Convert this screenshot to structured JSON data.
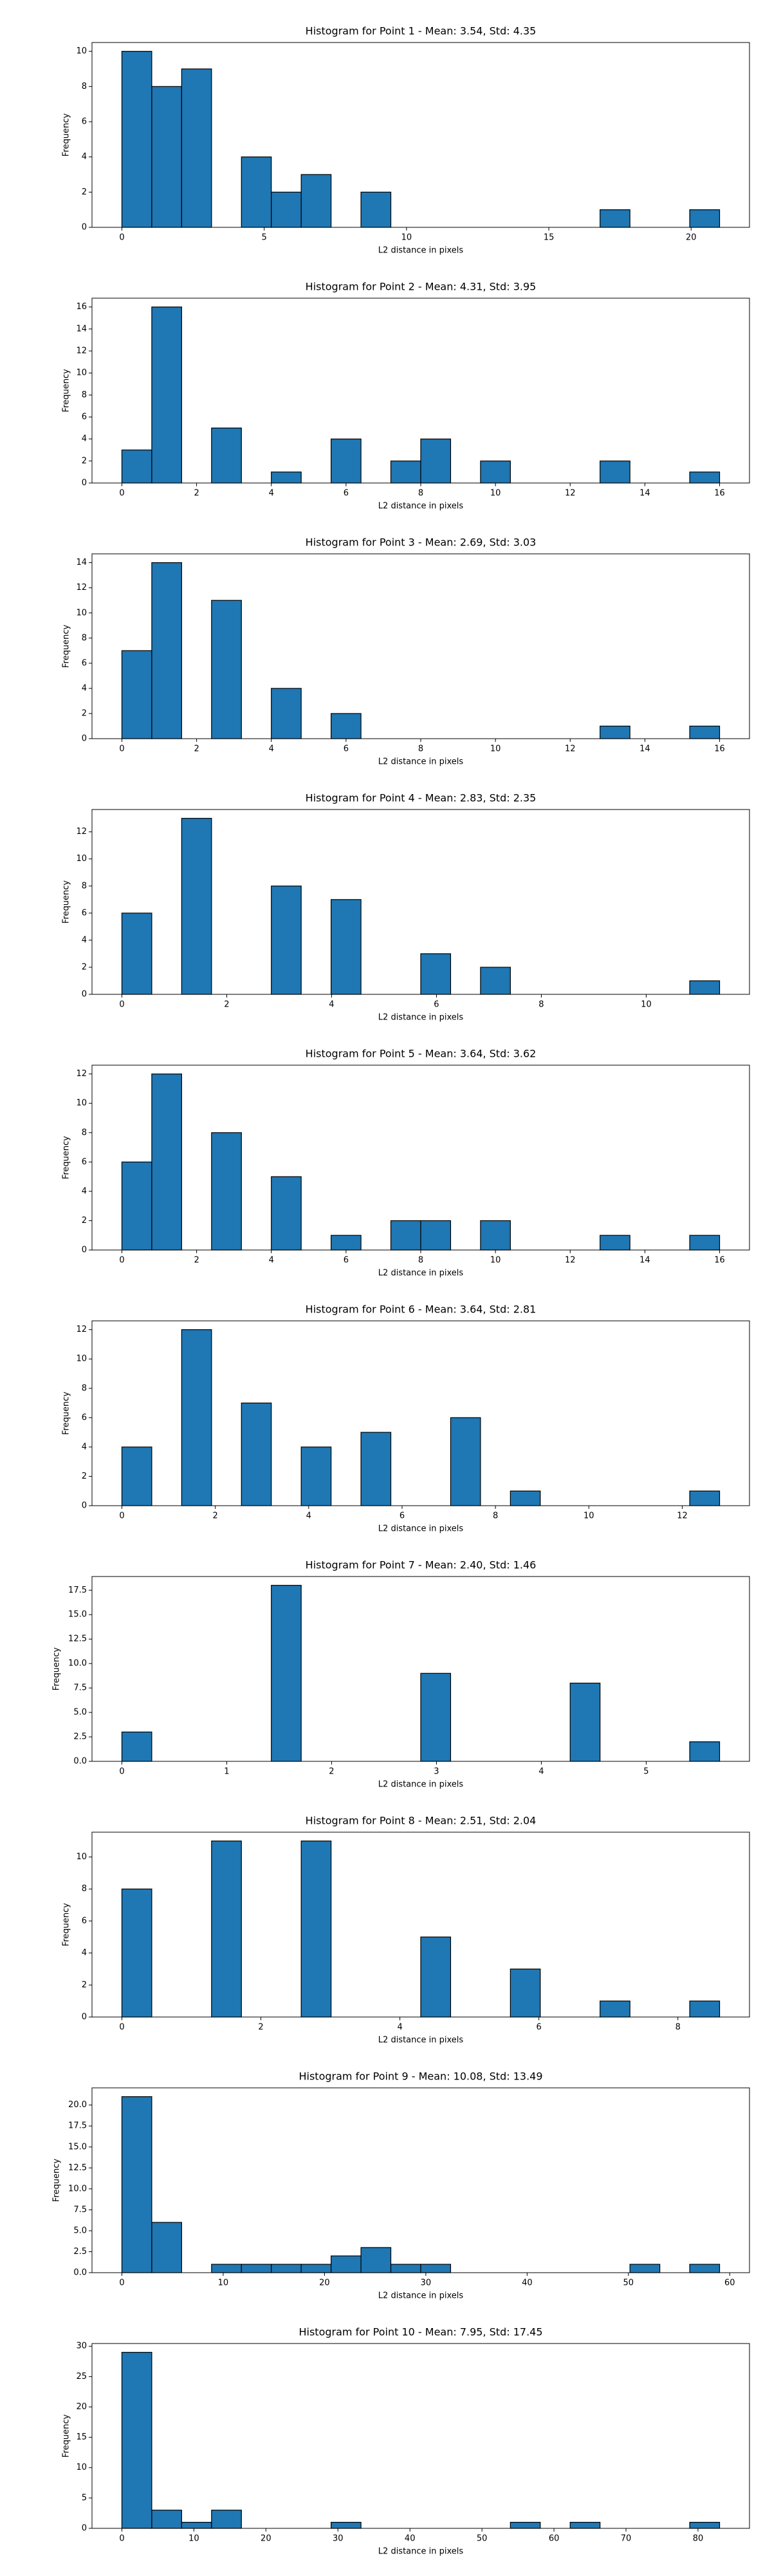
{
  "chart_data": [
    {
      "type": "histogram",
      "title": "Histogram for Point 1 - Mean: 3.54, Std: 4.35",
      "x_label": "L2 distance in pixels",
      "y_label": "Frequency",
      "color": "#1f77b4",
      "edgecolor": "#000000",
      "bins": [
        0,
        1.05,
        2.1,
        3.15,
        4.2,
        5.25,
        6.3,
        7.35,
        8.4,
        9.45,
        10.5,
        11.55,
        12.6,
        13.65,
        14.7,
        15.75,
        16.8,
        17.85,
        18.9,
        19.95,
        21
      ],
      "values": [
        10,
        8,
        9,
        0,
        4,
        2,
        3,
        0,
        2,
        0,
        0,
        0,
        0,
        0,
        0,
        0,
        1,
        0,
        0,
        1
      ],
      "xlim": [
        -1.05,
        22.05
      ],
      "xticks": [
        0,
        5,
        10,
        15,
        20
      ],
      "ylim": [
        0,
        10.5
      ],
      "yticks": [
        0,
        2,
        4,
        6,
        8,
        10
      ]
    },
    {
      "type": "histogram",
      "title": "Histogram for Point 2 - Mean: 4.31, Std: 3.95",
      "x_label": "L2 distance in pixels",
      "y_label": "Frequency",
      "color": "#1f77b4",
      "edgecolor": "#000000",
      "bins": [
        0,
        0.8,
        1.6,
        2.4,
        3.2,
        4,
        4.8,
        5.6,
        6.4,
        7.2,
        8,
        8.8,
        9.6,
        10.4,
        11.2,
        12,
        12.8,
        13.6,
        14.4,
        15.2,
        16
      ],
      "values": [
        3,
        16,
        0,
        5,
        0,
        1,
        0,
        4,
        0,
        2,
        4,
        0,
        2,
        0,
        0,
        0,
        2,
        0,
        0,
        1
      ],
      "xlim": [
        -0.8,
        16.8
      ],
      "xticks": [
        0,
        2,
        4,
        6,
        8,
        10,
        12,
        14,
        16
      ],
      "ylim": [
        0,
        16.8
      ],
      "yticks": [
        0,
        2,
        4,
        6,
        8,
        10,
        12,
        14,
        16
      ]
    },
    {
      "type": "histogram",
      "title": "Histogram for Point 3 - Mean: 2.69, Std: 3.03",
      "x_label": "L2 distance in pixels",
      "y_label": "Frequency",
      "color": "#1f77b4",
      "edgecolor": "#000000",
      "bins": [
        0,
        0.8,
        1.6,
        2.4,
        3.2,
        4,
        4.8,
        5.6,
        6.4,
        7.2,
        8,
        8.8,
        9.6,
        10.4,
        11.2,
        12,
        12.8,
        13.6,
        14.4,
        15.2,
        16
      ],
      "values": [
        7,
        14,
        0,
        11,
        0,
        4,
        0,
        2,
        0,
        0,
        0,
        0,
        0,
        0,
        0,
        0,
        1,
        0,
        0,
        1
      ],
      "xlim": [
        -0.8,
        16.8
      ],
      "xticks": [
        0,
        2,
        4,
        6,
        8,
        10,
        12,
        14,
        16
      ],
      "ylim": [
        0,
        14.7
      ],
      "yticks": [
        0,
        2,
        4,
        6,
        8,
        10,
        12,
        14
      ]
    },
    {
      "type": "histogram",
      "title": "Histogram for Point 4 - Mean: 2.83, Std: 2.35",
      "x_label": "L2 distance in pixels",
      "y_label": "Frequency",
      "color": "#1f77b4",
      "edgecolor": "#000000",
      "bins": [
        0,
        0.57,
        1.14,
        1.71,
        2.28,
        2.85,
        3.42,
        3.99,
        4.56,
        5.13,
        5.7,
        6.27,
        6.84,
        7.41,
        7.98,
        8.55,
        9.12,
        9.69,
        10.26,
        10.83,
        11.4
      ],
      "values": [
        6,
        0,
        13,
        0,
        0,
        8,
        0,
        7,
        0,
        0,
        3,
        0,
        2,
        0,
        0,
        0,
        0,
        0,
        0,
        1
      ],
      "xlim": [
        -0.57,
        11.97
      ],
      "xticks": [
        0,
        2,
        4,
        6,
        8,
        10
      ],
      "ylim": [
        0,
        13.65
      ],
      "yticks": [
        0,
        2,
        4,
        6,
        8,
        10,
        12
      ]
    },
    {
      "type": "histogram",
      "title": "Histogram for Point 5 - Mean: 3.64, Std: 3.62",
      "x_label": "L2 distance in pixels",
      "y_label": "Frequency",
      "color": "#1f77b4",
      "edgecolor": "#000000",
      "bins": [
        0,
        0.8,
        1.6,
        2.4,
        3.2,
        4,
        4.8,
        5.6,
        6.4,
        7.2,
        8,
        8.8,
        9.6,
        10.4,
        11.2,
        12,
        12.8,
        13.6,
        14.4,
        15.2,
        16
      ],
      "values": [
        6,
        12,
        0,
        8,
        0,
        5,
        0,
        1,
        0,
        2,
        2,
        0,
        2,
        0,
        0,
        0,
        1,
        0,
        0,
        1
      ],
      "xlim": [
        -0.8,
        16.8
      ],
      "xticks": [
        0,
        2,
        4,
        6,
        8,
        10,
        12,
        14,
        16
      ],
      "ylim": [
        0,
        12.6
      ],
      "yticks": [
        0,
        2,
        4,
        6,
        8,
        10,
        12
      ]
    },
    {
      "type": "histogram",
      "title": "Histogram for Point 6 - Mean: 3.64, Std: 2.81",
      "x_label": "L2 distance in pixels",
      "y_label": "Frequency",
      "color": "#1f77b4",
      "edgecolor": "#000000",
      "bins": [
        0,
        0.64,
        1.28,
        1.92,
        2.56,
        3.2,
        3.84,
        4.48,
        5.12,
        5.76,
        6.4,
        7.04,
        7.68,
        8.32,
        8.96,
        9.6,
        10.24,
        10.88,
        11.52,
        12.16,
        12.8
      ],
      "values": [
        4,
        0,
        12,
        0,
        7,
        0,
        4,
        0,
        5,
        0,
        0,
        6,
        0,
        1,
        0,
        0,
        0,
        0,
        0,
        1
      ],
      "xlim": [
        -0.64,
        13.44
      ],
      "xticks": [
        0,
        2,
        4,
        6,
        8,
        10,
        12
      ],
      "ylim": [
        0,
        12.6
      ],
      "yticks": [
        0,
        2,
        4,
        6,
        8,
        10,
        12
      ]
    },
    {
      "type": "histogram",
      "title": "Histogram for Point 7 - Mean: 2.40, Std: 1.46",
      "x_label": "L2 distance in pixels",
      "y_label": "Frequency",
      "color": "#1f77b4",
      "edgecolor": "#000000",
      "bins": [
        0,
        0.285,
        0.57,
        0.855,
        1.14,
        1.425,
        1.71,
        1.995,
        2.28,
        2.565,
        2.85,
        3.135,
        3.42,
        3.705,
        3.99,
        4.275,
        4.56,
        4.845,
        5.13,
        5.415,
        5.7
      ],
      "values": [
        3,
        0,
        0,
        0,
        0,
        18,
        0,
        0,
        0,
        0,
        9,
        0,
        0,
        0,
        0,
        8,
        0,
        0,
        0,
        2
      ],
      "xlim": [
        -0.285,
        5.985
      ],
      "xticks": [
        0,
        1,
        2,
        3,
        4,
        5
      ],
      "ylim": [
        0,
        18.9
      ],
      "yticks": [
        {
          "value": 0,
          "label": "0.0"
        },
        2.5,
        {
          "value": 5,
          "label": "5.0"
        },
        7.5,
        {
          "value": 10,
          "label": "10.0"
        },
        12.5,
        {
          "value": 15,
          "label": "15.0"
        },
        17.5
      ]
    },
    {
      "type": "histogram",
      "title": "Histogram for Point 8 - Mean: 2.51, Std: 2.04",
      "x_label": "L2 distance in pixels",
      "y_label": "Frequency",
      "color": "#1f77b4",
      "edgecolor": "#000000",
      "bins": [
        0,
        0.43,
        0.86,
        1.29,
        1.72,
        2.15,
        2.58,
        3.01,
        3.44,
        3.87,
        4.3,
        4.73,
        5.16,
        5.59,
        6.02,
        6.45,
        6.88,
        7.31,
        7.74,
        8.17,
        8.6
      ],
      "values": [
        8,
        0,
        0,
        11,
        0,
        0,
        11,
        0,
        0,
        0,
        5,
        0,
        0,
        3,
        0,
        0,
        1,
        0,
        0,
        1
      ],
      "xlim": [
        -0.43,
        9.03
      ],
      "xticks": [
        0,
        2,
        4,
        6,
        8
      ],
      "ylim": [
        0,
        11.55
      ],
      "yticks": [
        0,
        2,
        4,
        6,
        8,
        10
      ]
    },
    {
      "type": "histogram",
      "title": "Histogram for Point 9 - Mean: 10.08, Std: 13.49",
      "x_label": "L2 distance in pixels",
      "y_label": "Frequency",
      "color": "#1f77b4",
      "edgecolor": "#000000",
      "bins": [
        0,
        2.95,
        5.9,
        8.85,
        11.8,
        14.75,
        17.7,
        20.65,
        23.6,
        26.55,
        29.5,
        32.45,
        35.4,
        38.35,
        41.3,
        44.25,
        47.2,
        50.15,
        53.1,
        56.05,
        59
      ],
      "values": [
        21,
        6,
        0,
        1,
        1,
        1,
        1,
        2,
        3,
        1,
        1,
        0,
        0,
        0,
        0,
        0,
        0,
        1,
        0,
        1
      ],
      "xlim": [
        -2.95,
        61.95
      ],
      "xticks": [
        0,
        10,
        20,
        30,
        40,
        50,
        60
      ],
      "ylim": [
        0,
        22.05
      ],
      "yticks": [
        {
          "value": 0,
          "label": "0.0"
        },
        2.5,
        {
          "value": 5,
          "label": "5.0"
        },
        7.5,
        {
          "value": 10,
          "label": "10.0"
        },
        12.5,
        {
          "value": 15,
          "label": "15.0"
        },
        17.5,
        {
          "value": 20,
          "label": "20.0"
        }
      ]
    },
    {
      "type": "histogram",
      "title": "Histogram for Point 10 - Mean: 7.95, Std: 17.45",
      "x_label": "L2 distance in pixels",
      "y_label": "Frequency",
      "color": "#1f77b4",
      "edgecolor": "#000000",
      "bins": [
        0,
        4.15,
        8.3,
        12.45,
        16.6,
        20.75,
        24.9,
        29.05,
        33.2,
        37.35,
        41.5,
        45.65,
        49.8,
        53.95,
        58.1,
        62.25,
        66.4,
        70.55,
        74.7,
        78.85,
        83
      ],
      "values": [
        29,
        3,
        1,
        3,
        0,
        0,
        0,
        1,
        0,
        0,
        0,
        0,
        0,
        1,
        0,
        1,
        0,
        0,
        0,
        1
      ],
      "xlim": [
        -4.15,
        87.15
      ],
      "xticks": [
        0,
        10,
        20,
        30,
        40,
        50,
        60,
        70,
        80
      ],
      "ylim": [
        0,
        30.45
      ],
      "yticks": [
        0,
        5,
        10,
        15,
        20,
        25,
        30
      ]
    }
  ]
}
